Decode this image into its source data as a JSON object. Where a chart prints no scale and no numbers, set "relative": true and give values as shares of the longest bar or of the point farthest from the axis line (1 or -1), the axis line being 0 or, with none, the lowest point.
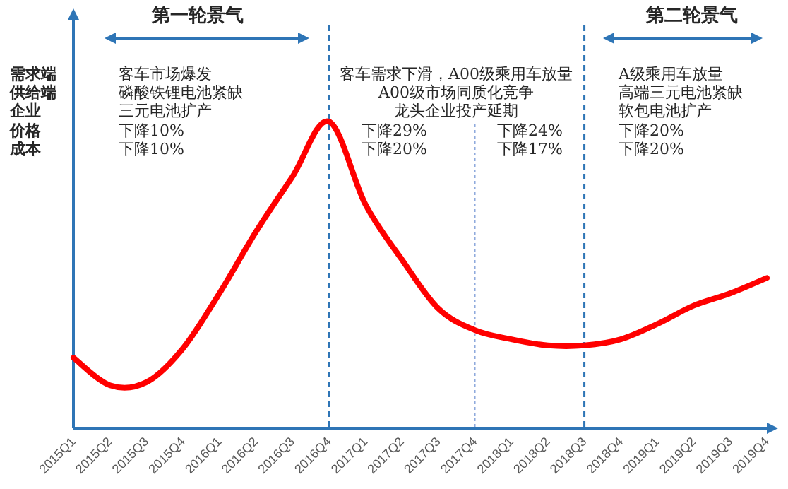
{
  "chart_data": {
    "type": "line",
    "relative": true,
    "tick_labels": "x",
    "color": "#ff0000",
    "line_style": "solid",
    "categories": [
      "2015Q1",
      "2015Q2",
      "2015Q3",
      "2015Q4",
      "2016Q1",
      "2016Q2",
      "2016Q3",
      "2016Q4",
      "2017Q1",
      "2017Q2",
      "2017Q3",
      "2017Q4",
      "2018Q1",
      "2018Q2",
      "2018Q3",
      "2018Q4",
      "2019Q1",
      "2019Q2",
      "2019Q3",
      "2019Q4"
    ],
    "values": [
      0.23,
      0.14,
      0.15,
      0.26,
      0.44,
      0.64,
      0.82,
      1.0,
      0.73,
      0.55,
      0.39,
      0.32,
      0.29,
      0.27,
      0.27,
      0.29,
      0.34,
      0.4,
      0.44,
      0.49
    ],
    "ref_lines": [
      {
        "axis": "x",
        "value": "2016Q4",
        "color": "#2e75b6",
        "line_style": "dashed"
      },
      {
        "axis": "x",
        "value": "2017Q4",
        "color": "#8faadc",
        "line_style": "dotted"
      },
      {
        "axis": "x",
        "value": "2018Q3",
        "color": "#2e75b6",
        "line_style": "dashed"
      }
    ],
    "annotations": [
      "第一轮景气",
      "第二轮景气",
      "需求端",
      "供给端",
      "企业",
      "价格",
      "成本",
      "客车市场爆发",
      "磷酸铁锂电池紧缺",
      "三元电池扩产",
      "下降10%",
      "下降10%",
      "客车需求下滑，A00级乘用车放量",
      "A00级市场同质化竞争",
      "龙头企业投产延期",
      "下降29%",
      "下降20%",
      "下降24%",
      "下降17%",
      "A级乘用车放量",
      "高端三元电池紧缺",
      "软包电池扩产",
      "下降20%",
      "下降20%"
    ]
  }
}
